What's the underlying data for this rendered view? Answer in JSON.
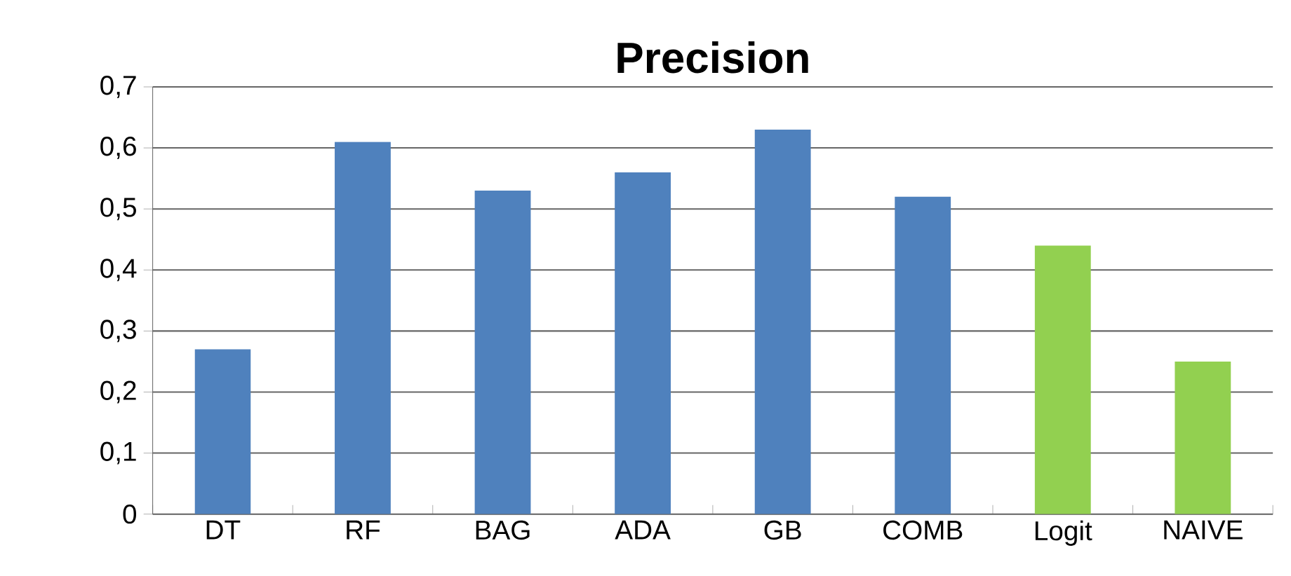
{
  "chart_data": {
    "type": "bar",
    "title": "Precision",
    "categories": [
      "DT",
      "RF",
      "BAG",
      "ADA",
      "GB",
      "COMB",
      "Logit",
      "NAIVE"
    ],
    "values": [
      0.27,
      0.61,
      0.53,
      0.56,
      0.63,
      0.52,
      0.44,
      0.25
    ],
    "colors": [
      "#4f81bd",
      "#4f81bd",
      "#4f81bd",
      "#4f81bd",
      "#4f81bd",
      "#4f81bd",
      "#92d050",
      "#92d050"
    ],
    "ylim": [
      0,
      0.7
    ],
    "yticks": [
      0,
      {
        "value": 0.1,
        "label": "0,1"
      },
      {
        "value": 0.2,
        "label": "0,2"
      },
      {
        "value": 0.3,
        "label": "0,3"
      },
      {
        "value": 0.4,
        "label": "0,4"
      },
      {
        "value": 0.5,
        "label": "0,5"
      },
      {
        "value": 0.6,
        "label": "0,6"
      },
      {
        "value": 0.7,
        "label": "0,7"
      }
    ],
    "grid": "y"
  }
}
